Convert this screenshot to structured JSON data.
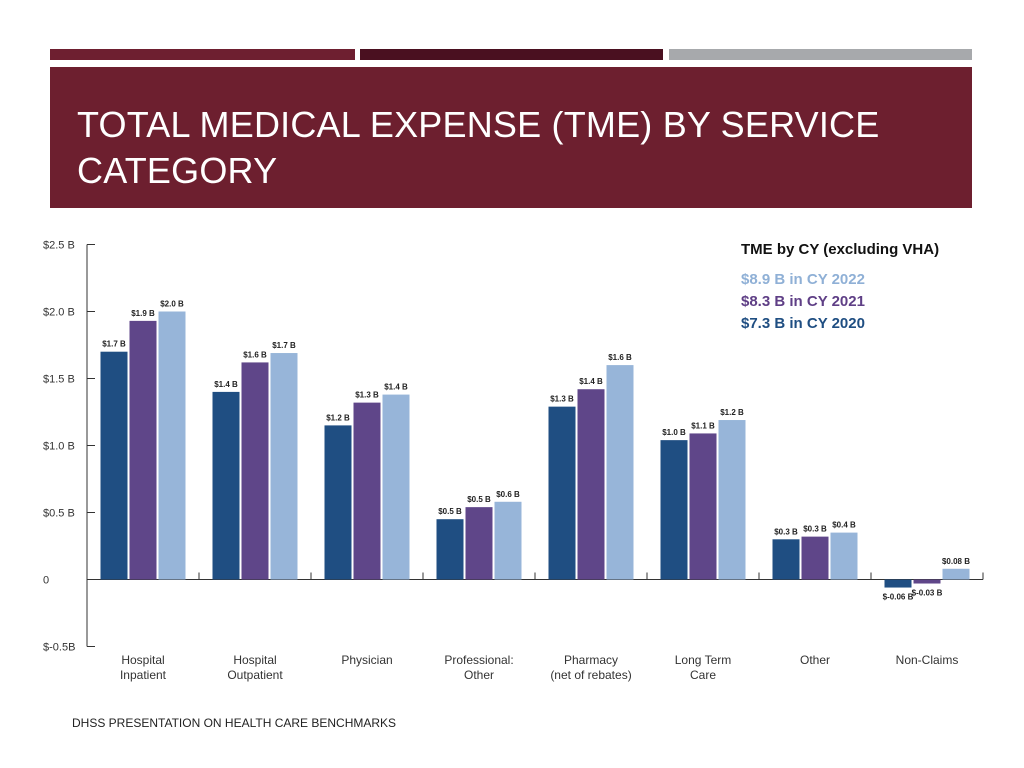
{
  "colors": {
    "stripe1": "#6e1f30",
    "stripe2": "#4a1020",
    "stripe3": "#a7a9ac",
    "header_bg": "#6d1f2f",
    "cy2020": "#1f4e82",
    "cy2021": "#5f4689",
    "cy2022": "#97b5d9",
    "legend_2022": "#8fb0d6",
    "legend_2021": "#5f3f86",
    "legend_2020": "#1f4e82"
  },
  "title": "TOTAL MEDICAL EXPENSE (TME) BY SERVICE CATEGORY",
  "footer": "DHSS PRESENTATION ON HEALTH CARE BENCHMARKS",
  "chart_data": {
    "type": "bar",
    "title": "TME by CY (excluding VHA)",
    "legend": [
      {
        "text": "$8.9 B in CY 2022",
        "series": "CY 2022"
      },
      {
        "text": "$8.3 B in CY 2021",
        "series": "CY 2021"
      },
      {
        "text": "$7.3 B in CY 2020",
        "series": "CY 2020"
      }
    ],
    "legend_position": "top-right",
    "categories": [
      [
        "Hospital",
        "Inpatient"
      ],
      [
        "Hospital",
        "Outpatient"
      ],
      [
        "Physician"
      ],
      [
        "Professional:",
        "Other"
      ],
      [
        "Pharmacy",
        "(net of rebates)"
      ],
      [
        "Long Term",
        "Care"
      ],
      [
        "Other"
      ],
      [
        "Non-Claims"
      ]
    ],
    "series": [
      {
        "name": "CY 2020",
        "values": [
          1.7,
          1.4,
          1.15,
          0.45,
          1.29,
          1.04,
          0.3,
          -0.06
        ],
        "labels": [
          "$1.7 B",
          "$1.4 B",
          "$1.2 B",
          "$0.5 B",
          "$1.3 B",
          "$1.0 B",
          "$0.3 B",
          "$-0.06 B"
        ]
      },
      {
        "name": "CY 2021",
        "values": [
          1.93,
          1.62,
          1.32,
          0.54,
          1.42,
          1.09,
          0.32,
          -0.03
        ],
        "labels": [
          "$1.9 B",
          "$1.6 B",
          "$1.3 B",
          "$0.5 B",
          "$1.4 B",
          "$1.1 B",
          "$0.3 B",
          "$-0.03 B"
        ]
      },
      {
        "name": "CY 2022",
        "values": [
          2.0,
          1.69,
          1.38,
          0.58,
          1.6,
          1.19,
          0.35,
          0.08
        ],
        "labels": [
          "$2.0 B",
          "$1.7 B",
          "$1.4 B",
          "$0.6 B",
          "$1.6 B",
          "$1.2 B",
          "$0.4 B",
          "$0.08 B"
        ]
      }
    ],
    "yticks": [
      {
        "value": 2.5,
        "label": "$2.5 B"
      },
      {
        "value": 2.0,
        "label": "$2.0 B"
      },
      {
        "value": 1.5,
        "label": "$1.5 B"
      },
      {
        "value": 1.0,
        "label": "$1.0 B"
      },
      {
        "value": 0.5,
        "label": "$0.5 B"
      },
      {
        "value": 0,
        "label": "0"
      },
      {
        "value": -0.5,
        "label": "$-0.5B"
      }
    ],
    "ylim": [
      -0.5,
      2.5
    ],
    "ylabel": "",
    "xlabel": ""
  }
}
